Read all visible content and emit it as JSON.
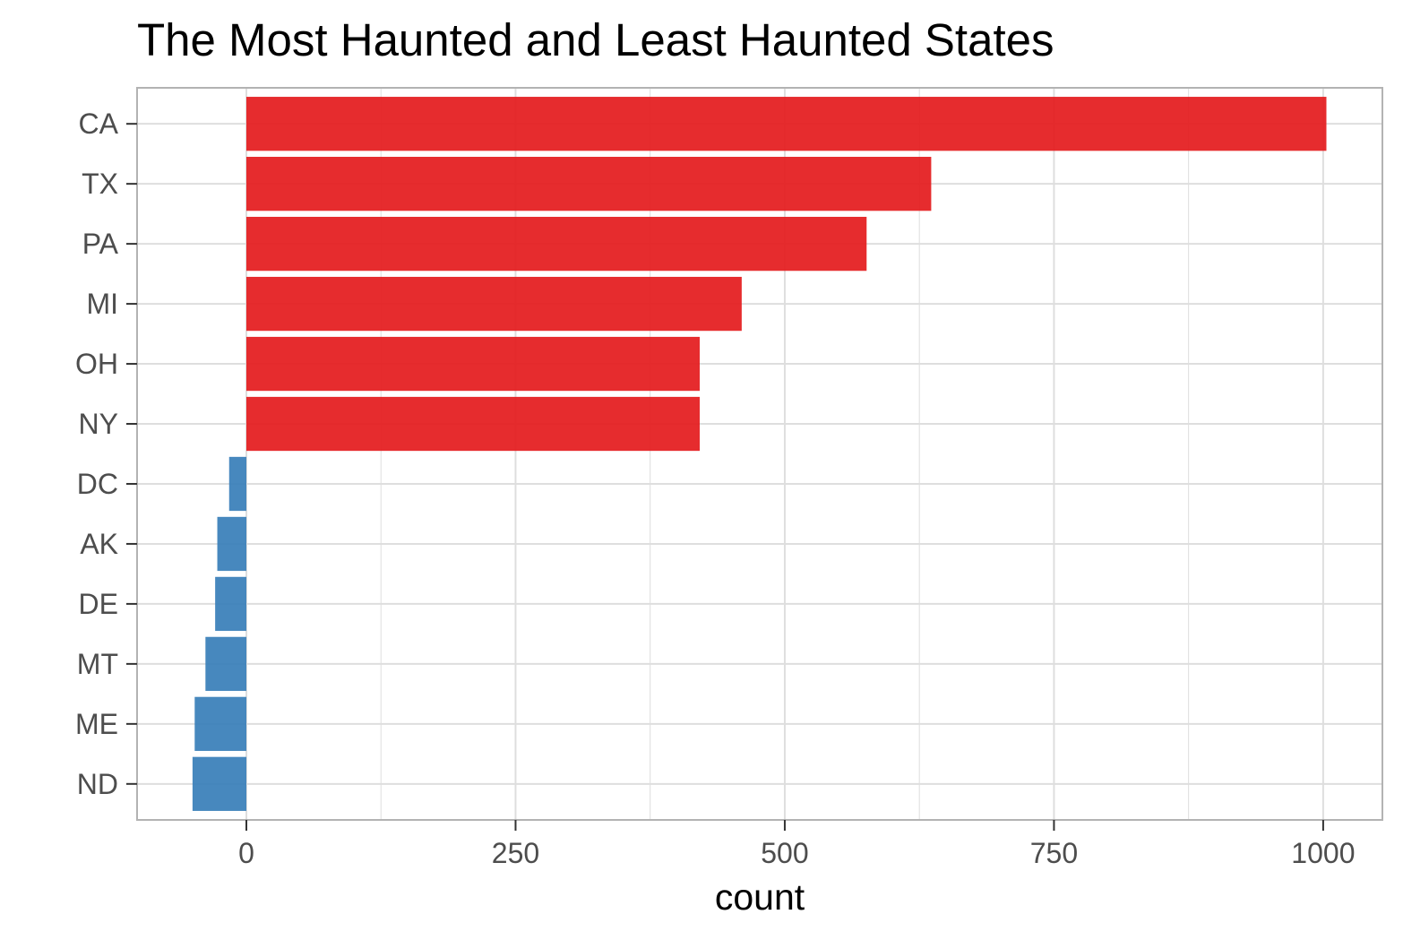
{
  "chart_data": {
    "type": "bar",
    "orientation": "horizontal",
    "title": "The Most Haunted and Least Haunted States",
    "xlabel": "count",
    "ylabel": "",
    "categories": [
      "CA",
      "TX",
      "PA",
      "MI",
      "OH",
      "NY",
      "DC",
      "AK",
      "DE",
      "MT",
      "ME",
      "ND"
    ],
    "values": [
      1003,
      636,
      576,
      460,
      421,
      421,
      -16,
      -27,
      -29,
      -38,
      -48,
      -50
    ],
    "bar_colors": [
      "#e41a1c",
      "#e41a1c",
      "#e41a1c",
      "#e41a1c",
      "#e41a1c",
      "#e41a1c",
      "#377eb8",
      "#377eb8",
      "#377eb8",
      "#377eb8",
      "#377eb8",
      "#377eb8"
    ],
    "xlim": [
      -101.5,
      1055
    ],
    "x_ticks": [
      0,
      250,
      500,
      750,
      1000
    ],
    "x_tick_labels": [
      "0",
      "250",
      "500",
      "750",
      "1000"
    ],
    "grid": true,
    "legend": "none"
  },
  "colors": {
    "most_haunted": "#e41a1c",
    "least_haunted": "#377eb8",
    "grid": "#dedede",
    "panel_border": "#b3b3b3",
    "tick": "#333333"
  }
}
